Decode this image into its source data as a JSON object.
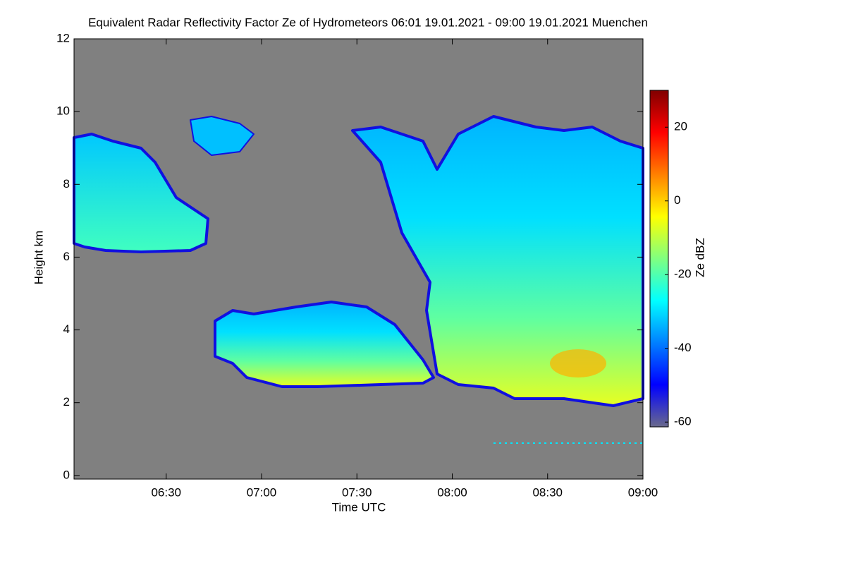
{
  "chart_data": {
    "type": "heatmap",
    "title": "Equivalent Radar Reflectivity Factor Ze of Hydrometeors   06:01 19.01.2021 - 09:00 19.01.2021 Muenchen",
    "x_label": "Time UTC",
    "y_label": "Height km",
    "xlim": [
      1,
      180
    ],
    "xticks": [
      {
        "value": 30,
        "label": "06:30"
      },
      {
        "value": 60,
        "label": "07:00"
      },
      {
        "value": 90,
        "label": "07:30"
      },
      {
        "value": 120,
        "label": "08:00"
      },
      {
        "value": 150,
        "label": "08:30"
      },
      {
        "value": 180,
        "label": "09:00"
      }
    ],
    "ylim": [
      -0.1,
      12
    ],
    "yticks": [
      0,
      2,
      4,
      6,
      8,
      10,
      12
    ],
    "background_color": "#808080",
    "colorbar": {
      "label": "Ze dBZ",
      "clim": [
        -61.3,
        30
      ],
      "ticks": [
        -60,
        -40,
        -20,
        0,
        20
      ],
      "colors": [
        "#6a6a8c",
        "#0000ff",
        "#0080ff",
        "#00ffff",
        "#80ff80",
        "#ffff00",
        "#ff8000",
        "#ff0000",
        "#800000"
      ]
    }
  }
}
